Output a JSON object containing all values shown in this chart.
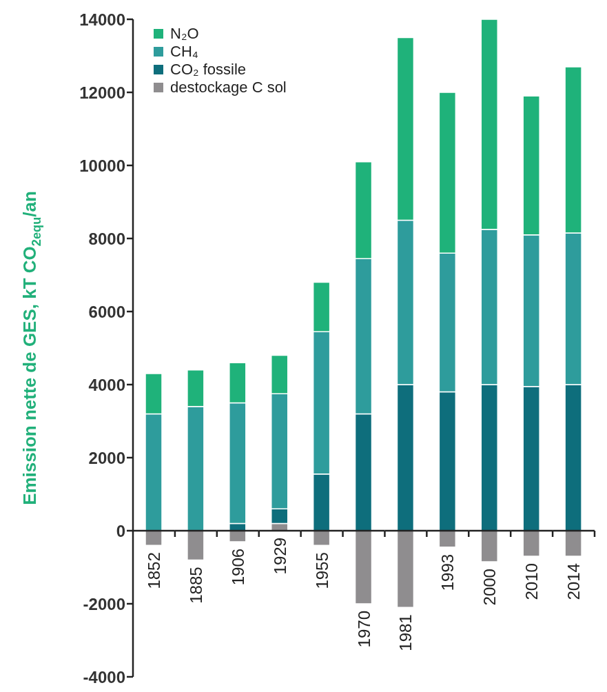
{
  "chart_data": {
    "type": "bar",
    "stacked": true,
    "ylabel": "Emission nette de GES, kT CO$_{2equ}$/an",
    "categories": [
      "1852",
      "1885",
      "1906",
      "1929",
      "1955",
      "1970",
      "1981",
      "1993",
      "2000",
      "2010",
      "2014"
    ],
    "series": [
      {
        "name": "destockage C sol",
        "color": "#8f8d8f",
        "values": [
          -400,
          -800,
          -300,
          200,
          -400,
          -2000,
          -2100,
          -450,
          -850,
          -700,
          -700
        ]
      },
      {
        "name": "CO₂ fossile",
        "color": "#0e6e7c",
        "values": [
          0,
          0,
          200,
          400,
          1550,
          3200,
          4000,
          3800,
          4000,
          3950,
          4000
        ]
      },
      {
        "name": "CH₄",
        "color": "#2e9c9c",
        "values": [
          3200,
          3400,
          3300,
          3150,
          3900,
          4250,
          4500,
          3800,
          4250,
          4150,
          4150
        ]
      },
      {
        "name": "N₂O",
        "color": "#1fb27a",
        "values": [
          1100,
          1000,
          1100,
          1050,
          1350,
          2650,
          5000,
          4400,
          5750,
          3800,
          4550
        ]
      }
    ],
    "ylim": [
      -4000,
      14000
    ],
    "yticks": [
      -4000,
      -2000,
      0,
      2000,
      4000,
      6000,
      8000,
      10000,
      12000,
      14000
    ],
    "legend": "top left"
  }
}
